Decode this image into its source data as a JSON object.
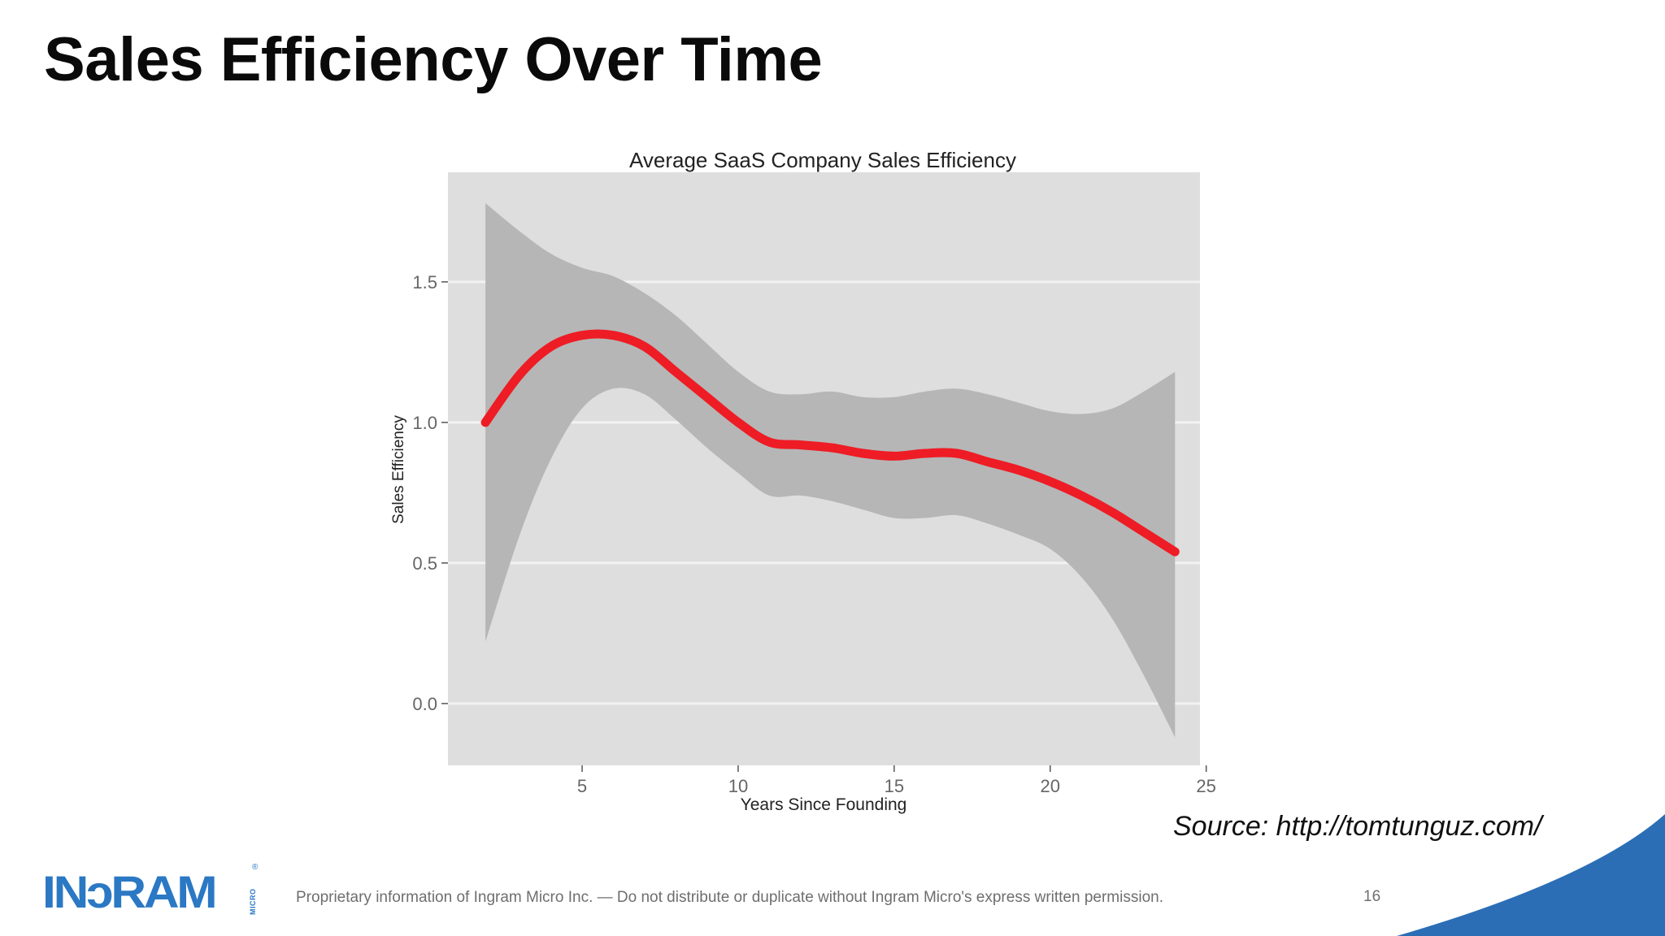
{
  "slide": {
    "title": "Sales Efficiency Over Time",
    "source": "Source: http://tomtunguz.com/",
    "footer": "Proprietary information of Ingram Micro Inc. — Do not distribute or duplicate without Ingram Micro's express written permission.",
    "page_number": "16"
  },
  "logo": {
    "text": "INɔRAM",
    "sub_text": "MICRO",
    "reg_mark": "®",
    "color": "#2b78c4"
  },
  "chart_data": {
    "type": "line",
    "title": "Average SaaS Company Sales Efficiency",
    "xlabel": "Years Since Founding",
    "ylabel": "Sales Efficiency",
    "xlim": [
      0.7,
      24.8
    ],
    "ylim": [
      -0.22,
      1.89
    ],
    "x_ticks": [
      5,
      10,
      15,
      20,
      25
    ],
    "x_tick_labels": [
      "5",
      "10",
      "15",
      "20",
      "25"
    ],
    "y_ticks": [
      0.0,
      0.5,
      1.0,
      1.5
    ],
    "y_tick_labels": [
      "0.0",
      "0.5",
      "1.0",
      "1.5"
    ],
    "grid": true,
    "panel_color": "#dedede",
    "grid_color": "#f2f2f2",
    "series": [
      {
        "color": "#ee1c25",
        "x": [
          1.9,
          3,
          4,
          5,
          6,
          7,
          8,
          9,
          10,
          11,
          12,
          13,
          14,
          15,
          16,
          17,
          18,
          19,
          20,
          21,
          22,
          23,
          24
        ],
        "y": [
          1.0,
          1.17,
          1.27,
          1.31,
          1.31,
          1.27,
          1.18,
          1.09,
          1.0,
          0.93,
          0.92,
          0.91,
          0.89,
          0.88,
          0.89,
          0.89,
          0.86,
          0.83,
          0.79,
          0.74,
          0.68,
          0.61,
          0.54
        ]
      }
    ],
    "confidence_band": {
      "color": "#b6b6b6",
      "x": [
        1.9,
        3,
        4,
        5,
        6,
        7,
        8,
        9,
        10,
        11,
        12,
        13,
        14,
        15,
        16,
        17,
        18,
        19,
        20,
        21,
        22,
        23,
        24
      ],
      "upper": [
        1.78,
        1.68,
        1.6,
        1.55,
        1.52,
        1.46,
        1.38,
        1.28,
        1.18,
        1.11,
        1.1,
        1.11,
        1.09,
        1.09,
        1.11,
        1.12,
        1.1,
        1.07,
        1.04,
        1.03,
        1.05,
        1.11,
        1.18
      ],
      "lower": [
        0.22,
        0.6,
        0.87,
        1.05,
        1.12,
        1.1,
        1.01,
        0.91,
        0.82,
        0.74,
        0.74,
        0.72,
        0.69,
        0.66,
        0.66,
        0.67,
        0.64,
        0.6,
        0.55,
        0.45,
        0.3,
        0.1,
        -0.12
      ]
    }
  }
}
